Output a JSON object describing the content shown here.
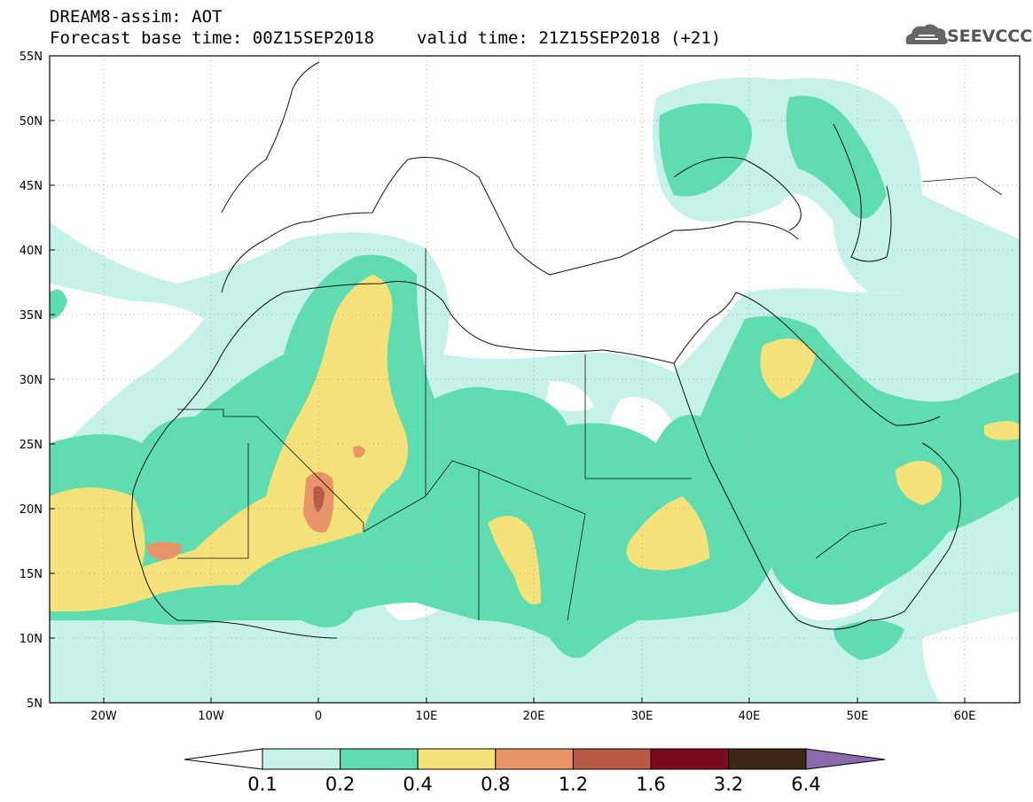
{
  "header": {
    "product": "DREAM8-assim: AOT",
    "base_time": "Forecast base time: 00Z15SEP2018",
    "valid_time": "valid time: 21Z15SEP2018 (+21)"
  },
  "logo": {
    "text": "SEEVCCC",
    "icon": "cloud-icon"
  },
  "axes": {
    "lat_labels": [
      "55N",
      "50N",
      "45N",
      "40N",
      "35N",
      "30N",
      "25N",
      "20N",
      "15N",
      "10N",
      "5N"
    ],
    "lon_labels": [
      "20W",
      "10W",
      "0",
      "10E",
      "20E",
      "30E",
      "40E",
      "50E",
      "60E"
    ]
  },
  "colorbar": {
    "levels": [
      "0.1",
      "0.2",
      "0.4",
      "0.8",
      "1.2",
      "1.6",
      "3.2",
      "6.4"
    ],
    "colors": [
      "#c6f2ea",
      "#5fdcb0",
      "#f5e27a",
      "#e99468",
      "#b85a45",
      "#7b0a1e",
      "#3d2614",
      "#8a6aaa"
    ],
    "under_color": "#ffffff"
  },
  "palette": {
    "aot_0_1": "#c6f2ea",
    "aot_0_2": "#5fdcb0",
    "aot_0_4": "#f5e27a",
    "aot_0_8": "#e99468",
    "aot_1_2": "#b85a45"
  }
}
